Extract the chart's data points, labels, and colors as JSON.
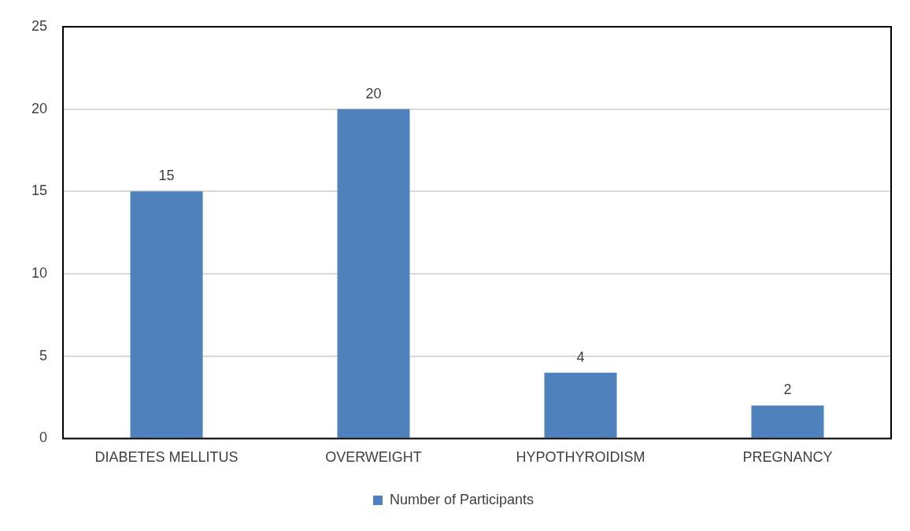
{
  "chart_data": {
    "type": "bar",
    "categories": [
      "DIABETES MELLITUS",
      "OVERWEIGHT",
      "HYPOTHYROIDISM",
      "PREGNANCY"
    ],
    "series": [
      {
        "name": "Number of Participants",
        "color": "#4f81bd",
        "values": [
          15,
          20,
          4,
          2
        ]
      }
    ],
    "ylim": [
      0,
      25
    ],
    "yticks": [
      0,
      5,
      10,
      15,
      20,
      25
    ],
    "grid": "y",
    "legend": "bottom",
    "data_labels": true
  }
}
